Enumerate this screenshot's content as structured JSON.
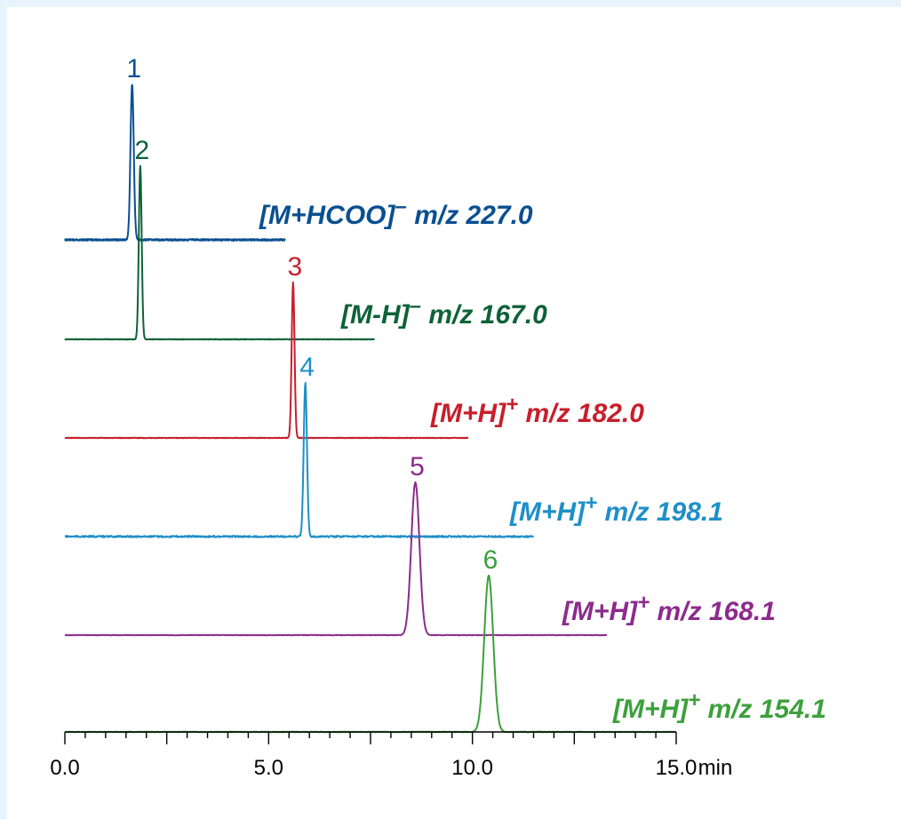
{
  "chart_data": {
    "type": "line",
    "xlabel": "",
    "x_unit": "min",
    "xlim": [
      0.0,
      15.0
    ],
    "x_ticks": [
      "0.0",
      "5.0",
      "10.0",
      "15.0"
    ],
    "x_minor_step": 0.5,
    "grid": false,
    "legend": "none",
    "series": [
      {
        "label_prefix": "[M+HCOO]",
        "label_charge": "-",
        "label_mz": "m/z 227.0",
        "color": "#0a4f91",
        "x_end": 5.4,
        "noise": 0.9,
        "peaks": [
          {
            "label": "1",
            "rt": 1.65,
            "height": 1.0,
            "width": 0.04
          }
        ]
      },
      {
        "label_prefix": "[M-H]",
        "label_charge": "-",
        "label_mz": "m/z 167.0",
        "color": "#0e6238",
        "x_end": 7.6,
        "noise": 0.3,
        "peaks": [
          {
            "label": "2",
            "rt": 1.85,
            "height": 1.0,
            "width": 0.035
          }
        ]
      },
      {
        "label_prefix": "[M+H]",
        "label_charge": "+",
        "label_mz": "m/z 182.0",
        "color": "#c81e2b",
        "x_end": 9.9,
        "noise": 0.3,
        "peaks": [
          {
            "label": "3",
            "rt": 5.6,
            "height": 1.0,
            "width": 0.035
          }
        ]
      },
      {
        "label_prefix": "[M+H]",
        "label_charge": "+",
        "label_mz": "m/z 198.1",
        "color": "#1e8fc8",
        "x_end": 11.5,
        "noise": 0.9,
        "peaks": [
          {
            "label": "4",
            "rt": 5.9,
            "height": 1.0,
            "width": 0.04
          }
        ]
      },
      {
        "label_prefix": "[M+H]",
        "label_charge": "+",
        "label_mz": "m/z 168.1",
        "color": "#8c2b8c",
        "x_end": 13.3,
        "noise": 0.3,
        "peaks": [
          {
            "label": "5",
            "rt": 8.6,
            "height": 1.0,
            "width": 0.1
          }
        ]
      },
      {
        "label_prefix": "[M+H]",
        "label_charge": "+",
        "label_mz": "m/z 154.1",
        "color": "#3ca03c",
        "x_end": 15.0,
        "noise": 0.4,
        "peaks": [
          {
            "label": "6",
            "rt": 10.4,
            "height": 1.0,
            "width": 0.11
          }
        ]
      }
    ]
  }
}
